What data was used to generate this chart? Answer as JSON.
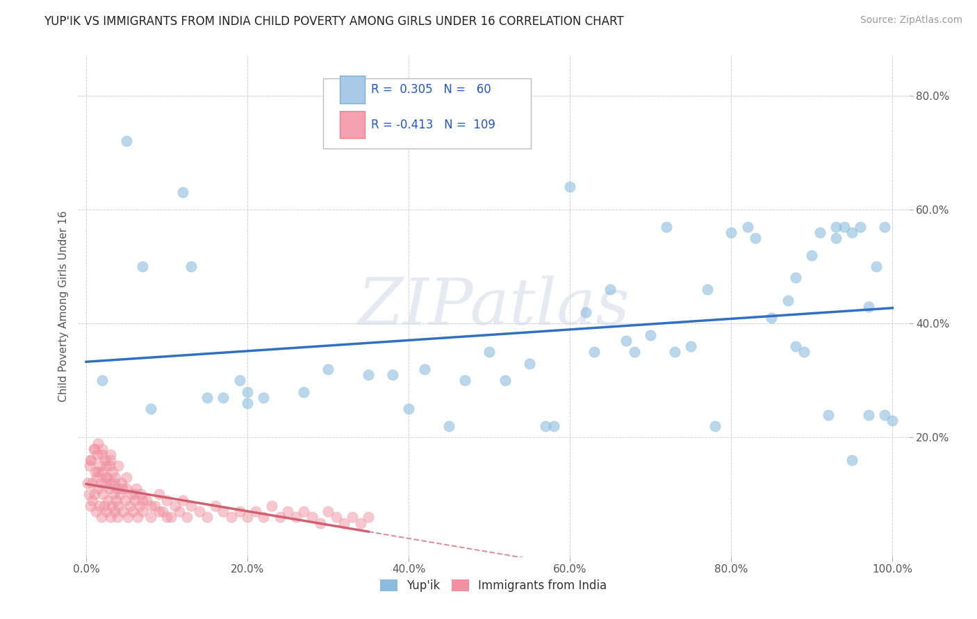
{
  "title": "YUP'IK VS IMMIGRANTS FROM INDIA CHILD POVERTY AMONG GIRLS UNDER 16 CORRELATION CHART",
  "source": "Source: ZipAtlas.com",
  "ylabel": "Child Poverty Among Girls Under 16",
  "background_color": "#ffffff",
  "watermark_text": "ZIPatlas",
  "legend_r1": "R =  0.305   N =   60",
  "legend_r2": "R = -0.413   N =  109",
  "legend_color1": "#a8c8e8",
  "legend_color2": "#f4a0b0",
  "bottom_legend": [
    "Yup'ik",
    "Immigrants from India"
  ],
  "xlim": [
    -0.01,
    1.02
  ],
  "ylim": [
    -0.01,
    0.87
  ],
  "xticks": [
    0.0,
    0.2,
    0.4,
    0.6,
    0.8,
    1.0
  ],
  "yticks": [
    0.2,
    0.4,
    0.6,
    0.8
  ],
  "xticklabels": [
    "0.0%",
    "20.0%",
    "40.0%",
    "60.0%",
    "80.0%",
    "100.0%"
  ],
  "yticklabels": [
    "20.0%",
    "40.0%",
    "60.0%",
    "80.0%"
  ],
  "series1_color": "#8bbcdd",
  "series2_color": "#f090a0",
  "trendline1_color": "#3070c0",
  "trendline2_color": "#d06070",
  "title_fontsize": 12,
  "source_fontsize": 10,
  "tick_fontsize": 11,
  "ylabel_fontsize": 11
}
